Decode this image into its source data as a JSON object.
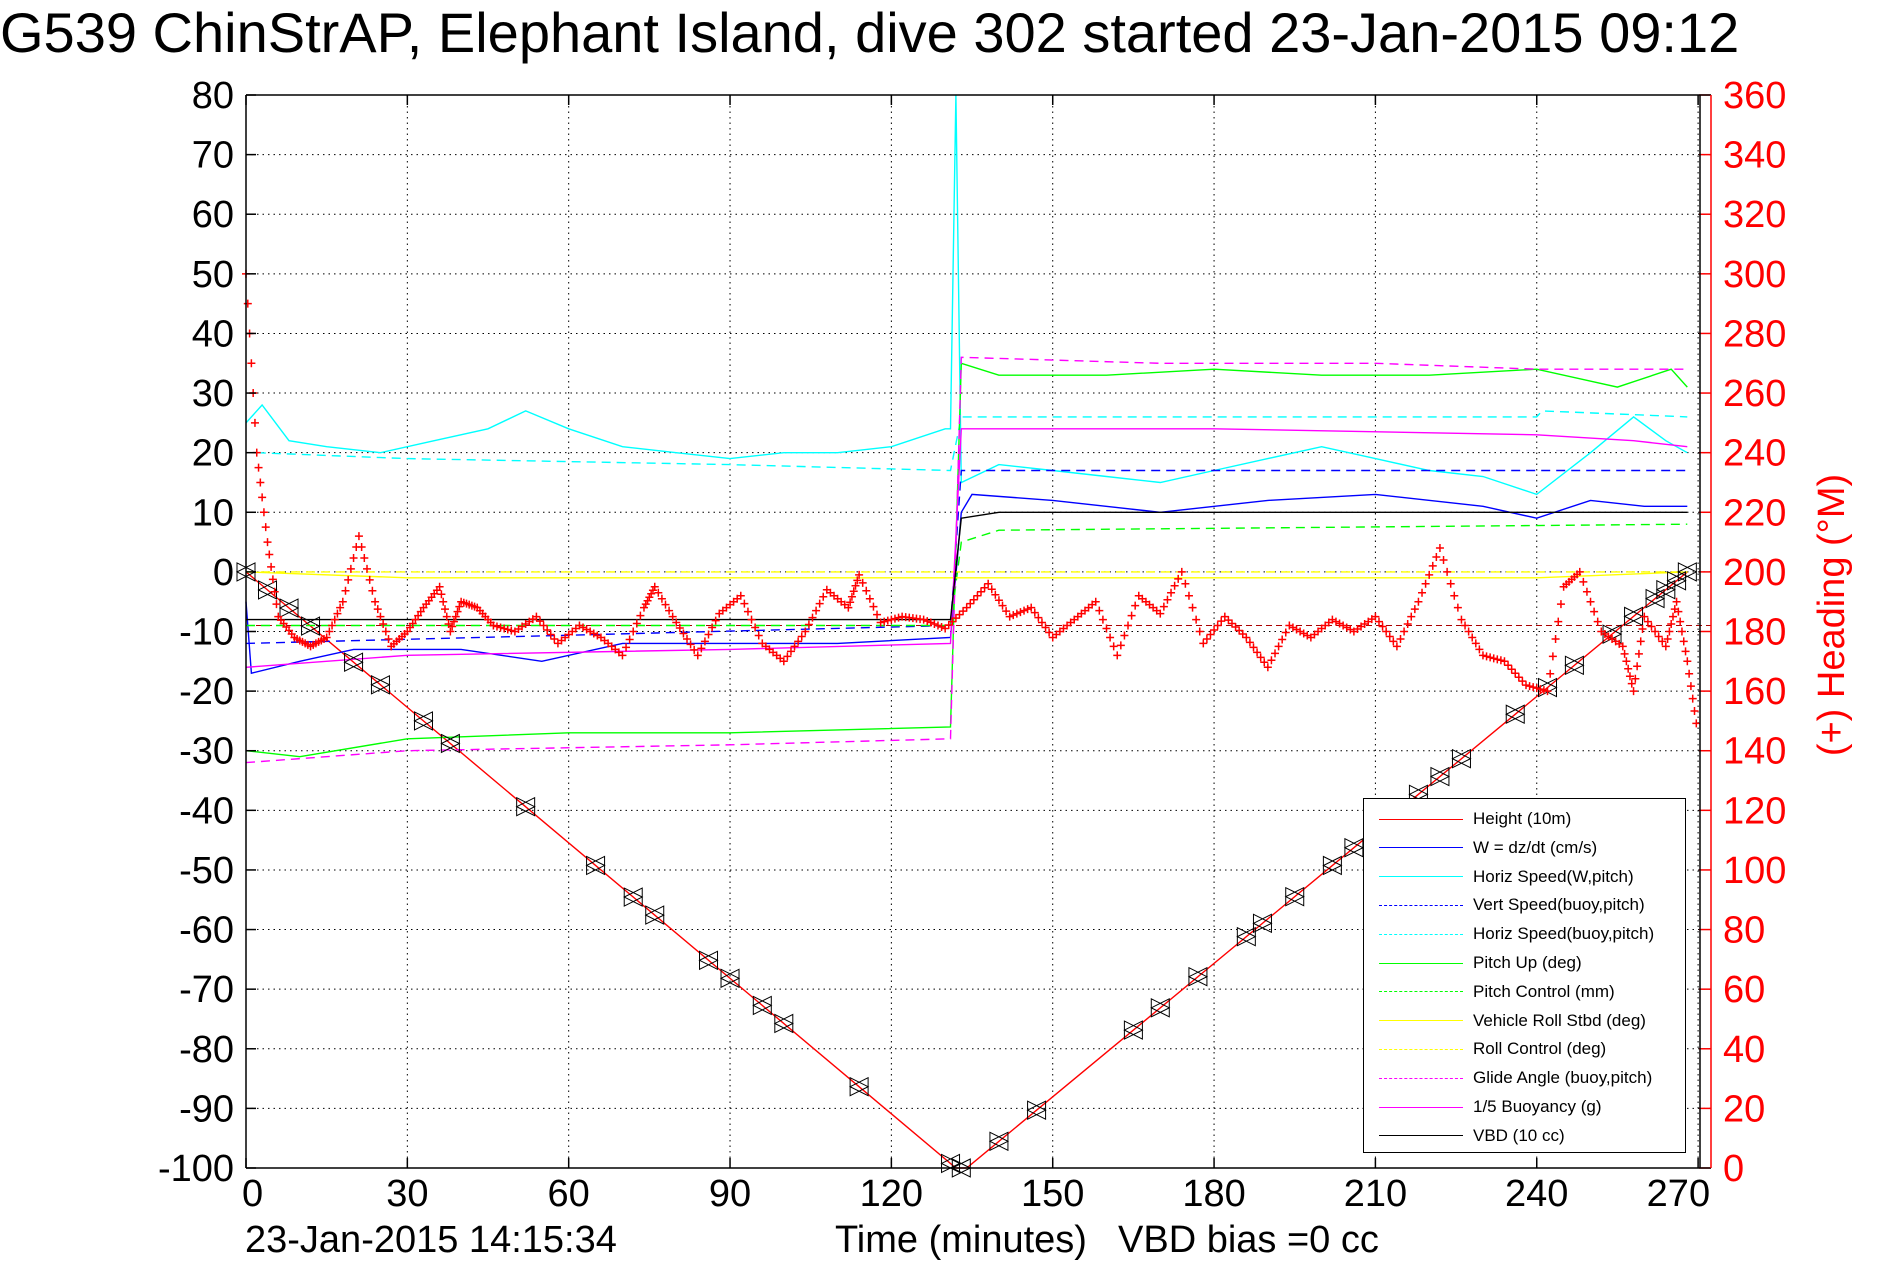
{
  "chart_data": {
    "type": "line",
    "title": "G539 ChinStrAP, Elephant Island, dive 302 started 23-Jan-2015 09:12",
    "xlabel": "Time (minutes)",
    "ylabel_right": "(+) Heading (°M)",
    "xlim": [
      0,
      272.4
    ],
    "ylim": [
      -100,
      80
    ],
    "ylim_right": [
      0,
      360
    ],
    "grid": true,
    "legend_position": "bottom-right",
    "x_ticks": [
      "0",
      "30",
      "60",
      "90",
      "120",
      "150",
      "180",
      "210",
      "240",
      "270"
    ],
    "y_ticks": [
      "80",
      "70",
      "60",
      "50",
      "40",
      "30",
      "20",
      "10",
      "0",
      "-10",
      "-20",
      "-30",
      "-40",
      "-50",
      "-60",
      "-70",
      "-80",
      "-90",
      "-100"
    ],
    "y_right_ticks": [
      "360",
      "340",
      "320",
      "300",
      "280",
      "260",
      "240",
      "220",
      "200",
      "180",
      "160",
      "140",
      "120",
      "100",
      "80",
      "60",
      "40",
      "20",
      "0"
    ],
    "series": [
      {
        "name": "Height (10m)",
        "color": "#ff0000",
        "style": "solid",
        "points": [
          [
            0,
            0
          ],
          [
            132,
            -100
          ],
          [
            134,
            -100
          ],
          [
            268,
            0
          ]
        ]
      },
      {
        "name": "W  =  dz/dt (cm/s)",
        "color": "#0000ff",
        "style": "solid",
        "points": [
          [
            0,
            -5
          ],
          [
            1,
            -17
          ],
          [
            10,
            -15
          ],
          [
            20,
            -13
          ],
          [
            30,
            -13
          ],
          [
            40,
            -13
          ],
          [
            55,
            -15
          ],
          [
            70,
            -12
          ],
          [
            90,
            -12
          ],
          [
            110,
            -12
          ],
          [
            131,
            -11
          ],
          [
            133,
            10
          ],
          [
            135,
            13
          ],
          [
            150,
            12
          ],
          [
            170,
            10
          ],
          [
            190,
            12
          ],
          [
            210,
            13
          ],
          [
            230,
            11
          ],
          [
            240,
            9
          ],
          [
            250,
            12
          ],
          [
            260,
            11
          ],
          [
            268,
            11
          ]
        ]
      },
      {
        "name": "Horiz Speed(W,pitch)",
        "color": "#00ffff",
        "style": "solid",
        "points": [
          [
            0,
            25
          ],
          [
            3,
            28
          ],
          [
            8,
            22
          ],
          [
            15,
            21
          ],
          [
            25,
            20
          ],
          [
            35,
            22
          ],
          [
            45,
            24
          ],
          [
            52,
            27
          ],
          [
            60,
            24
          ],
          [
            70,
            21
          ],
          [
            80,
            20
          ],
          [
            90,
            19
          ],
          [
            100,
            20
          ],
          [
            110,
            20
          ],
          [
            120,
            21
          ],
          [
            130,
            24
          ],
          [
            131,
            24
          ],
          [
            132,
            80
          ],
          [
            133,
            15
          ],
          [
            140,
            18
          ],
          [
            150,
            17
          ],
          [
            160,
            16
          ],
          [
            170,
            15
          ],
          [
            180,
            17
          ],
          [
            190,
            19
          ],
          [
            200,
            21
          ],
          [
            210,
            19
          ],
          [
            220,
            17
          ],
          [
            230,
            16
          ],
          [
            240,
            13
          ],
          [
            250,
            20
          ],
          [
            258,
            26
          ],
          [
            264,
            22
          ],
          [
            268,
            20
          ]
        ]
      },
      {
        "name": "Vert Speed(buoy,pitch)",
        "color": "#0000ff",
        "style": "dashed",
        "points": [
          [
            0,
            -12
          ],
          [
            131,
            -9
          ],
          [
            133,
            17
          ],
          [
            268,
            17
          ]
        ]
      },
      {
        "name": "Horiz Speed(buoy,pitch)",
        "color": "#00ffff",
        "style": "dashed",
        "points": [
          [
            2,
            20
          ],
          [
            30,
            19
          ],
          [
            90,
            18
          ],
          [
            131,
            17
          ],
          [
            133,
            26
          ],
          [
            240,
            26
          ],
          [
            241,
            27
          ],
          [
            268,
            26
          ]
        ]
      },
      {
        "name": "Pitch Up (deg)",
        "color": "#00ff00",
        "style": "solid",
        "points": [
          [
            0,
            -30
          ],
          [
            10,
            -31
          ],
          [
            30,
            -28
          ],
          [
            60,
            -27
          ],
          [
            90,
            -27
          ],
          [
            131,
            -26
          ],
          [
            133,
            35
          ],
          [
            140,
            33
          ],
          [
            160,
            33
          ],
          [
            180,
            34
          ],
          [
            200,
            33
          ],
          [
            220,
            33
          ],
          [
            240,
            34
          ],
          [
            255,
            31
          ],
          [
            265,
            34
          ],
          [
            268,
            31
          ]
        ]
      },
      {
        "name": "Pitch Control (mm)",
        "color": "#00ff00",
        "style": "dashed",
        "points": [
          [
            0,
            -9
          ],
          [
            131,
            -9
          ],
          [
            133,
            5
          ],
          [
            140,
            7
          ],
          [
            268,
            8
          ]
        ]
      },
      {
        "name": "Vehicle Roll Stbd (deg)",
        "color": "#ffff00",
        "style": "solid",
        "points": [
          [
            0,
            0
          ],
          [
            30,
            -1
          ],
          [
            60,
            -1
          ],
          [
            90,
            -1
          ],
          [
            131,
            -1
          ],
          [
            133,
            -1
          ],
          [
            170,
            -1
          ],
          [
            210,
            -1
          ],
          [
            240,
            -1
          ],
          [
            268,
            0
          ]
        ]
      },
      {
        "name": "Roll Control (deg)",
        "color": "#ffff00",
        "style": "dashed",
        "points": [
          [
            0,
            0
          ],
          [
            268,
            0
          ]
        ]
      },
      {
        "name": "Glide Angle (buoy,pitch)",
        "color": "#ff00ff",
        "style": "dashed",
        "points": [
          [
            0,
            -32
          ],
          [
            30,
            -30
          ],
          [
            90,
            -29
          ],
          [
            131,
            -28
          ],
          [
            133,
            36
          ],
          [
            170,
            35
          ],
          [
            210,
            35
          ],
          [
            240,
            34
          ],
          [
            268,
            34
          ]
        ]
      },
      {
        "name": "1/5 Buoyancy (g)",
        "color": "#ff00ff",
        "style": "solid",
        "points": [
          [
            0,
            -16
          ],
          [
            30,
            -14
          ],
          [
            90,
            -13
          ],
          [
            131,
            -12
          ],
          [
            133,
            24
          ],
          [
            180,
            24
          ],
          [
            240,
            23
          ],
          [
            258,
            22
          ],
          [
            268,
            21
          ]
        ]
      },
      {
        "name": "VBD (10 cc)",
        "color": "#000000",
        "style": "solid",
        "points": [
          [
            0,
            -8
          ],
          [
            131,
            -8
          ],
          [
            133,
            9
          ],
          [
            140,
            10
          ],
          [
            240,
            10
          ],
          [
            268,
            10
          ]
        ]
      }
    ],
    "heading_series": {
      "name": "Heading",
      "color": "#ff0000",
      "axis": "right",
      "points": [
        [
          0,
          300
        ],
        [
          2,
          240
        ],
        [
          4,
          210
        ],
        [
          6,
          185
        ],
        [
          9,
          178
        ],
        [
          12,
          175
        ],
        [
          15,
          178
        ],
        [
          18,
          190
        ],
        [
          21,
          212
        ],
        [
          24,
          190
        ],
        [
          27,
          175
        ],
        [
          30,
          180
        ],
        [
          33,
          188
        ],
        [
          36,
          195
        ],
        [
          38,
          180
        ],
        [
          40,
          190
        ],
        [
          43,
          188
        ],
        [
          46,
          182
        ],
        [
          50,
          180
        ],
        [
          54,
          185
        ],
        [
          58,
          176
        ],
        [
          62,
          182
        ],
        [
          66,
          178
        ],
        [
          70,
          172
        ],
        [
          74,
          188
        ],
        [
          76,
          195
        ],
        [
          80,
          183
        ],
        [
          84,
          172
        ],
        [
          88,
          186
        ],
        [
          92,
          192
        ],
        [
          96,
          176
        ],
        [
          100,
          170
        ],
        [
          104,
          180
        ],
        [
          108,
          194
        ],
        [
          112,
          188
        ],
        [
          114,
          199
        ],
        [
          118,
          183
        ],
        [
          122,
          185
        ],
        [
          126,
          184
        ],
        [
          130,
          181
        ],
        [
          134,
          188
        ],
        [
          138,
          196
        ],
        [
          142,
          185
        ],
        [
          146,
          188
        ],
        [
          150,
          178
        ],
        [
          154,
          184
        ],
        [
          158,
          190
        ],
        [
          162,
          172
        ],
        [
          166,
          192
        ],
        [
          170,
          186
        ],
        [
          174,
          200
        ],
        [
          178,
          176
        ],
        [
          182,
          185
        ],
        [
          186,
          178
        ],
        [
          190,
          168
        ],
        [
          194,
          182
        ],
        [
          198,
          178
        ],
        [
          202,
          184
        ],
        [
          206,
          180
        ],
        [
          210,
          185
        ],
        [
          214,
          175
        ],
        [
          218,
          190
        ],
        [
          222,
          208
        ],
        [
          226,
          184
        ],
        [
          230,
          172
        ],
        [
          234,
          170
        ],
        [
          238,
          162
        ],
        [
          242,
          160
        ],
        [
          245,
          195
        ],
        [
          248,
          200
        ],
        [
          252,
          180
        ],
        [
          256,
          175
        ],
        [
          258,
          160
        ],
        [
          260,
          185
        ],
        [
          264,
          175
        ],
        [
          266,
          190
        ],
        [
          268,
          170
        ],
        [
          270,
          145
        ]
      ]
    },
    "height_markers_x": [
      0,
      4,
      8,
      12,
      20,
      25,
      33,
      38,
      52,
      65,
      72,
      76,
      86,
      90,
      96,
      100,
      114,
      131,
      133,
      140,
      147,
      165,
      170,
      177,
      186,
      189,
      195,
      202,
      206,
      218,
      222,
      226,
      236,
      242,
      247,
      254,
      258,
      262,
      264,
      266,
      268
    ]
  },
  "footer": {
    "xlabel": "Time (minutes)",
    "datestamp": "23-Jan-2015 14:15:34",
    "vbd_bias": "VBD bias =0 cc"
  }
}
